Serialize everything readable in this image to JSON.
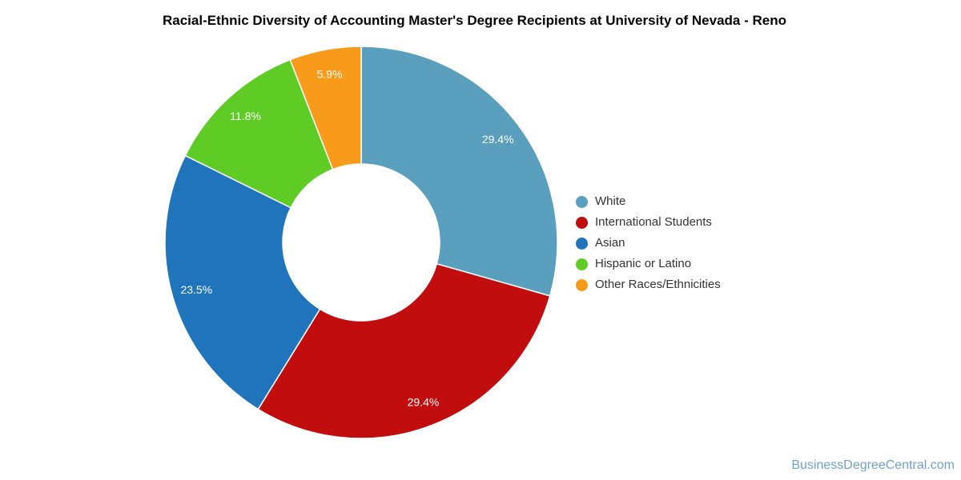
{
  "chart_data": {
    "type": "pie",
    "donut": true,
    "pie_hole_ratio": 0.4,
    "start_angle_deg": 0,
    "direction": "clockwise",
    "legend_position": "right",
    "grid": false,
    "title": "Racial-Ethnic Diversity of Accounting Master's Degree Recipients at University of Nevada - Reno",
    "slices": [
      {
        "label": "White",
        "value": 29.4,
        "display": "29.4%",
        "color": "#5a9fbe"
      },
      {
        "label": "International Students",
        "value": 29.4,
        "display": "29.4%",
        "color": "#c10d0d"
      },
      {
        "label": "Asian",
        "value": 23.5,
        "display": "23.5%",
        "color": "#1f74bb"
      },
      {
        "label": "Hispanic or Latino",
        "value": 11.8,
        "display": "11.8%",
        "color": "#5ecc24"
      },
      {
        "label": "Other Races/Ethnicities",
        "value": 5.9,
        "display": "5.9%",
        "color": "#f89b1b"
      }
    ]
  },
  "footer": {
    "credit": "BusinessDegreeCentral.com",
    "color": "#6fa3c9"
  }
}
